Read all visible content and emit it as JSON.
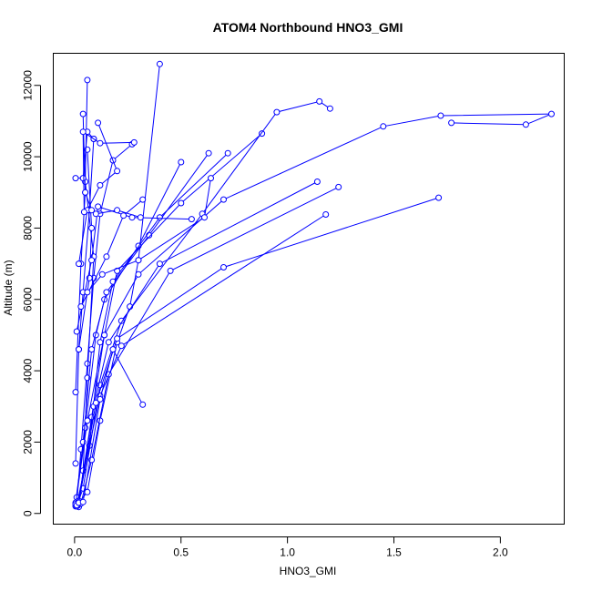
{
  "chart_data": {
    "type": "line",
    "title": "ATOM4 Northbound HNO3_GMI",
    "xlabel": "HNO3_GMI",
    "ylabel": "Altitude (m)",
    "xlim": [
      -0.1,
      2.3
    ],
    "ylim": [
      -300,
      12900
    ],
    "x_ticks": [
      0.0,
      0.5,
      1.0,
      1.5,
      2.0
    ],
    "x_tick_labels": [
      "0.0",
      "0.5",
      "1.0",
      "1.5",
      "2.0"
    ],
    "y_ticks": [
      0,
      2000,
      4000,
      6000,
      8000,
      10000,
      12000
    ],
    "y_tick_labels": [
      "0",
      "2000",
      "4000",
      "6000",
      "8000",
      "10000",
      "12000"
    ],
    "grid": false,
    "marker": "open-circle",
    "color": "#0000ff",
    "series": [
      {
        "points": [
          [
            0.005,
            200
          ],
          [
            0.06,
            600
          ],
          [
            0.12,
            2600
          ],
          [
            0.2,
            4800
          ],
          [
            0.26,
            5800
          ],
          [
            0.3,
            7100
          ],
          [
            0.4,
            12600
          ]
        ]
      },
      {
        "points": [
          [
            0.01,
            250
          ],
          [
            0.03,
            1800
          ],
          [
            0.06,
            4200
          ],
          [
            0.09,
            6600
          ],
          [
            0.12,
            8400
          ],
          [
            0.18,
            9900
          ],
          [
            0.27,
            10350
          ]
        ]
      },
      {
        "points": [
          [
            0.02,
            180
          ],
          [
            0.04,
            1200
          ],
          [
            0.06,
            3800
          ],
          [
            0.09,
            7200
          ],
          [
            0.05,
            9300
          ],
          [
            0.06,
            12150
          ]
        ]
      },
      {
        "points": [
          [
            0.005,
            300
          ],
          [
            0.05,
            2400
          ],
          [
            0.1,
            5000
          ],
          [
            0.14,
            6000
          ],
          [
            0.3,
            7500
          ],
          [
            0.5,
            9850
          ]
        ]
      },
      {
        "points": [
          [
            0.01,
            450
          ],
          [
            0.04,
            2000
          ],
          [
            0.08,
            4600
          ],
          [
            0.15,
            6200
          ],
          [
            0.35,
            7800
          ],
          [
            0.63,
            10100
          ]
        ]
      },
      {
        "points": [
          [
            0.015,
            220
          ],
          [
            0.07,
            1900
          ],
          [
            0.12,
            4800
          ],
          [
            0.18,
            6500
          ],
          [
            0.4,
            8300
          ],
          [
            0.72,
            10100
          ]
        ]
      },
      {
        "points": [
          [
            0.02,
            350
          ],
          [
            0.08,
            2700
          ],
          [
            0.14,
            5000
          ],
          [
            0.2,
            6800
          ],
          [
            0.5,
            8700
          ],
          [
            0.88,
            10650
          ]
        ]
      },
      {
        "points": [
          [
            0.01,
            200
          ],
          [
            0.04,
            700
          ],
          [
            0.12,
            3600
          ],
          [
            0.22,
            5400
          ],
          [
            0.6,
            8400
          ],
          [
            0.95,
            11250
          ],
          [
            1.15,
            11550
          ],
          [
            1.2,
            11350
          ]
        ]
      },
      {
        "points": [
          [
            0.005,
            260
          ],
          [
            0.06,
            2600
          ],
          [
            0.14,
            5000
          ],
          [
            0.3,
            6700
          ],
          [
            0.7,
            8800
          ],
          [
            1.45,
            10850
          ],
          [
            1.72,
            11150
          ],
          [
            2.24,
            11200
          ],
          [
            2.12,
            10900
          ],
          [
            1.77,
            10950
          ]
        ]
      },
      {
        "points": [
          [
            0.02,
            300
          ],
          [
            0.09,
            3000
          ],
          [
            0.16,
            4800
          ],
          [
            0.4,
            7000
          ],
          [
            1.14,
            9300
          ]
        ]
      },
      {
        "points": [
          [
            0.03,
            280
          ],
          [
            0.08,
            1500
          ],
          [
            0.16,
            3900
          ],
          [
            0.45,
            6800
          ],
          [
            1.24,
            9150
          ]
        ]
      },
      {
        "points": [
          [
            0.01,
            230
          ],
          [
            0.12,
            3300
          ],
          [
            0.22,
            4700
          ],
          [
            1.18,
            8380
          ]
        ]
      },
      {
        "points": [
          [
            0.02,
            300
          ],
          [
            0.1,
            3100
          ],
          [
            0.2,
            4900
          ],
          [
            0.7,
            6900
          ],
          [
            1.71,
            8850
          ]
        ]
      },
      {
        "points": [
          [
            0.04,
            320
          ],
          [
            0.12,
            3200
          ],
          [
            0.18,
            4600
          ],
          [
            0.32,
            3050
          ]
        ]
      },
      {
        "points": [
          [
            0.005,
            1400
          ],
          [
            0.02,
            4600
          ],
          [
            0.04,
            6200
          ],
          [
            0.07,
            8500
          ],
          [
            0.09,
            10500
          ]
        ]
      },
      {
        "points": [
          [
            0.005,
            3400
          ],
          [
            0.03,
            7000
          ],
          [
            0.05,
            9000
          ],
          [
            0.04,
            11200
          ]
        ]
      },
      {
        "points": [
          [
            0.02,
            4600
          ],
          [
            0.07,
            6600
          ],
          [
            0.08,
            8000
          ],
          [
            0.06,
            10200
          ]
        ]
      },
      {
        "points": [
          [
            0.01,
            5100
          ],
          [
            0.08,
            7100
          ],
          [
            0.11,
            8600
          ],
          [
            0.27,
            8300
          ],
          [
            0.55,
            8250
          ]
        ]
      },
      {
        "points": [
          [
            0.03,
            5800
          ],
          [
            0.15,
            7200
          ],
          [
            0.23,
            8350
          ],
          [
            0.32,
            8800
          ]
        ]
      },
      {
        "points": [
          [
            0.06,
            6200
          ],
          [
            0.13,
            6700
          ],
          [
            0.3,
            7100
          ],
          [
            0.61,
            8300
          ],
          [
            0.64,
            9400
          ]
        ]
      },
      {
        "points": [
          [
            0.02,
            7000
          ],
          [
            0.06,
            8500
          ],
          [
            0.12,
            9200
          ],
          [
            0.2,
            9600
          ],
          [
            0.11,
            10950
          ]
        ]
      },
      {
        "points": [
          [
            0.005,
            9400
          ],
          [
            0.04,
            9400
          ],
          [
            0.06,
            10700
          ],
          [
            0.09,
            10500
          ]
        ]
      },
      {
        "points": [
          [
            0.045,
            8450
          ],
          [
            0.04,
            10700
          ],
          [
            0.12,
            10380
          ],
          [
            0.28,
            10400
          ]
        ]
      },
      {
        "points": [
          [
            0.05,
            9000
          ],
          [
            0.08,
            8500
          ],
          [
            0.1,
            8400
          ],
          [
            0.2,
            8500
          ],
          [
            0.31,
            8300
          ]
        ]
      }
    ]
  }
}
